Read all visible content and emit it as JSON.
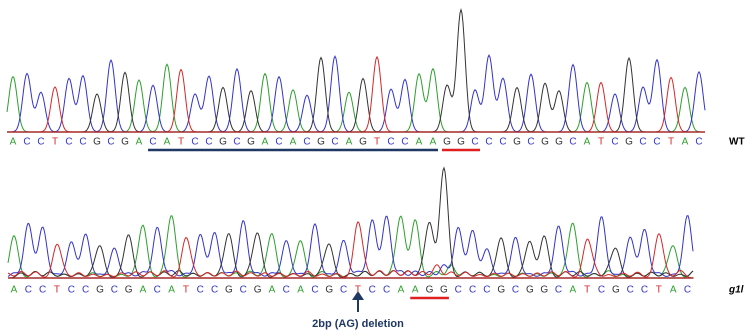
{
  "tracks": [
    {
      "label": "WT",
      "bases": [
        "A",
        "C",
        "C",
        "T",
        "C",
        "C",
        "G",
        "C",
        "G",
        "A",
        "C",
        "A",
        "T",
        "C",
        "C",
        "G",
        "C",
        "G",
        "A",
        "C",
        "A",
        "C",
        "G",
        "C",
        "A",
        "G",
        "T",
        "C",
        "C",
        "A",
        "A",
        "G",
        "G",
        "C",
        "C",
        "C",
        "G",
        "C",
        "G",
        "G",
        "C",
        "A",
        "T",
        "C",
        "G",
        "C",
        "C",
        "T",
        "A",
        "C"
      ]
    },
    {
      "label": "g1l",
      "bases": [
        "A",
        "C",
        "C",
        "T",
        "C",
        "C",
        "G",
        "C",
        "G",
        "A",
        "C",
        "A",
        "T",
        "C",
        "C",
        "G",
        "C",
        "G",
        "A",
        "C",
        "A",
        "C",
        "G",
        "C",
        "T",
        "C",
        "C",
        "A",
        "A",
        "G",
        "G",
        "C",
        "C",
        "C",
        "G",
        "C",
        "G",
        "G",
        "C",
        "A",
        "T",
        "C",
        "G",
        "C",
        "C",
        "T",
        "A",
        "C"
      ]
    }
  ],
  "annotation": "2bp (AG) deletion"
}
